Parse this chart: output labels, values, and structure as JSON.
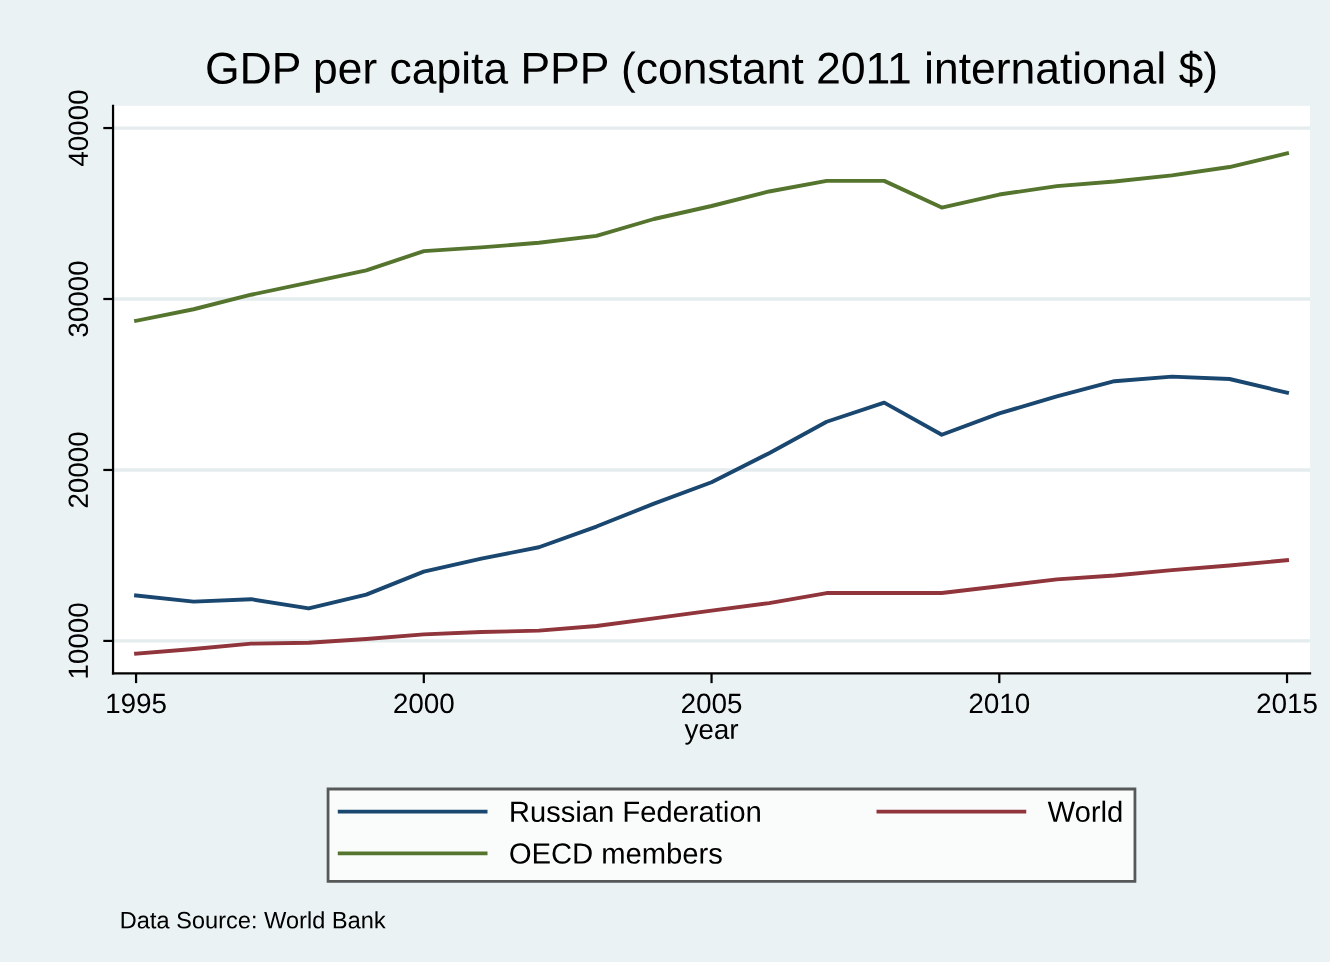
{
  "chart_data": {
    "type": "line",
    "title": "GDP per capita PPP (constant 2011 international $)",
    "xlabel": "year",
    "x": [
      1995,
      1996,
      1997,
      1998,
      1999,
      2000,
      2001,
      2002,
      2003,
      2004,
      2005,
      2006,
      2007,
      2008,
      2009,
      2010,
      2011,
      2012,
      2013,
      2014,
      2015
    ],
    "series": [
      {
        "name": "Russian Federation",
        "color": "#1a476f",
        "values": [
          12660,
          12300,
          12440,
          11900,
          12710,
          14050,
          14810,
          15480,
          16690,
          18030,
          19280,
          20980,
          22820,
          23940,
          22060,
          23310,
          24300,
          25190,
          25460,
          25320,
          24520
        ]
      },
      {
        "name": "World",
        "color": "#90353b",
        "values": [
          9260,
          9530,
          9840,
          9890,
          10110,
          10380,
          10520,
          10600,
          10870,
          11320,
          11770,
          12210,
          12800,
          12800,
          12800,
          13200,
          13600,
          13830,
          14140,
          14410,
          14720
        ]
      },
      {
        "name": "OECD members",
        "color": "#55752f",
        "values": [
          28725,
          29400,
          30250,
          30960,
          31680,
          32800,
          33020,
          33290,
          33690,
          34680,
          35440,
          36290,
          36910,
          36910,
          35350,
          36110,
          36600,
          36870,
          37230,
          37720,
          38520
        ]
      }
    ],
    "xlim": [
      1994.6,
      2015.4
    ],
    "ylim": [
      8100,
      41300
    ],
    "xticks": [
      1995,
      2000,
      2005,
      2010,
      2015
    ],
    "yticks": [
      10000,
      20000,
      30000,
      40000
    ],
    "grid": "y",
    "legend": "bottom",
    "marker": "none",
    "line_style": "solid",
    "annotations": [
      "Data Source: World Bank"
    ]
  }
}
